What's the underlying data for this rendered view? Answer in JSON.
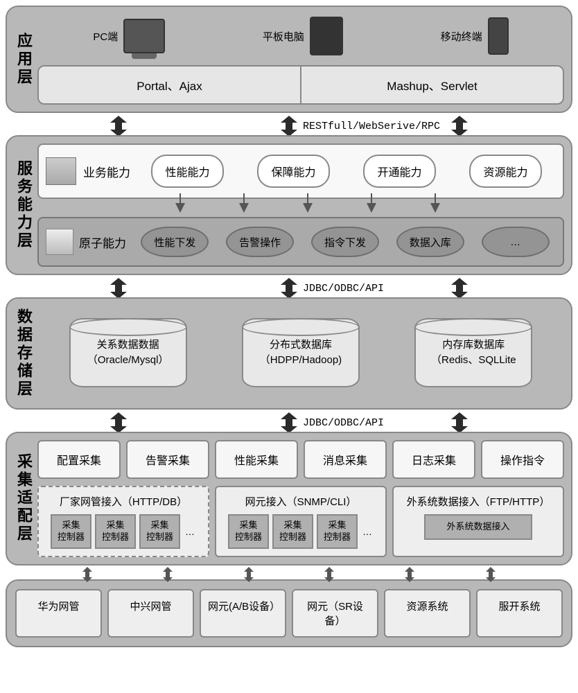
{
  "colors": {
    "layer_bg": "#b8b8b8",
    "layer_border": "#888888",
    "panel_light": "#f6f6f6",
    "panel_mid": "#e8e8e8",
    "ellipse_fill": "#949494",
    "ctrl_fill": "#b0b0b0",
    "arrow_dark": "#2b2b2b",
    "arrow_grey": "#555555"
  },
  "layers": {
    "app": {
      "title": "应用层",
      "devices": {
        "pc": "PC端",
        "tablet": "平板电脑",
        "mobile": "移动终端"
      },
      "boxes": [
        "Portal、Ajax",
        "Mashup、Servlet"
      ]
    },
    "service": {
      "title": "服务能力层",
      "biz_title": "业务能力",
      "biz_pills": [
        "性能能力",
        "保障能力",
        "开通能力",
        "资源能力"
      ],
      "atom_title": "原子能力",
      "atom_ellipses": [
        "性能下发",
        "告警操作",
        "指令下发",
        "数据入库",
        "…"
      ]
    },
    "data": {
      "title": "数据存储层",
      "cylinders": [
        {
          "l1": "关系数据数据",
          "l2": "（Oracle/Mysql）"
        },
        {
          "l1": "分布式数据库",
          "l2": "（HDPP/Hadoop)"
        },
        {
          "l1": "内存库数据库",
          "l2": "（Redis、SQLLite"
        }
      ]
    },
    "collect": {
      "title": "采集适配层",
      "top": [
        "配置采集",
        "告警采集",
        "性能采集",
        "消息采集",
        "日志采集",
        "操作指令"
      ],
      "access": [
        {
          "title": "厂家网管接入（HTTP/DB）",
          "ctrls": [
            "采集\n控制器",
            "采集\n控制器",
            "采集\n控制器"
          ],
          "dashed": true,
          "dots": true
        },
        {
          "title": "网元接入（SNMP/CLI）",
          "ctrls": [
            "采集\n控制器",
            "采集\n控制器",
            "采集\n控制器"
          ],
          "dashed": false,
          "dots": true
        },
        {
          "title": "外系统数据接入（FTP/HTTP）",
          "single": "外系统数据接入",
          "dashed": false
        }
      ]
    },
    "external": [
      "华为网管",
      "中兴网管",
      "网元(A/B设备）",
      "网元（SR设备）",
      "资源系统",
      "服开系统"
    ]
  },
  "connectors": {
    "app_svc": "RESTfull/WebSerive/RPC",
    "svc_data": "JDBC/ODBC/API",
    "data_coll": "JDBC/ODBC/API"
  }
}
